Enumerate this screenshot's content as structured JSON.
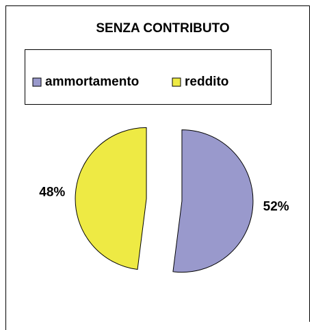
{
  "chart_data": {
    "type": "pie",
    "title": "SENZA CONTRIBUTO",
    "categories": [
      "ammortamento",
      "reddito"
    ],
    "values": [
      52,
      48
    ],
    "value_labels": [
      "52%",
      "48%"
    ],
    "colors": [
      "#9999cc",
      "#eeea44"
    ],
    "exploded": true
  }
}
